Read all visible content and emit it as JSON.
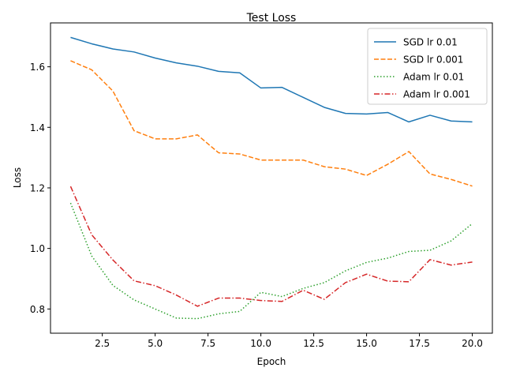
{
  "chart_data": {
    "type": "line",
    "title": "Test Loss",
    "xlabel": "Epoch",
    "ylabel": "Loss",
    "xlim": [
      0.05,
      20.95
    ],
    "ylim": [
      0.72,
      1.745
    ],
    "xticks": [
      2.5,
      5.0,
      7.5,
      10.0,
      12.5,
      15.0,
      17.5,
      20.0
    ],
    "xtick_labels": [
      "2.5",
      "5.0",
      "7.5",
      "10.0",
      "12.5",
      "15.0",
      "17.5",
      "20.0"
    ],
    "yticks": [
      0.8,
      1.0,
      1.2,
      1.4,
      1.6
    ],
    "ytick_labels": [
      "0.8",
      "1.0",
      "1.2",
      "1.4",
      "1.6"
    ],
    "grid": false,
    "legend_position": "top-right",
    "x": [
      1,
      2,
      3,
      4,
      5,
      6,
      7,
      8,
      9,
      10,
      11,
      12,
      13,
      14,
      15,
      16,
      17,
      18,
      19,
      20
    ],
    "series": [
      {
        "name": "SGD lr 0.01",
        "color": "#1f77b4",
        "dash": "solid",
        "values": [
          1.697,
          1.676,
          1.659,
          1.649,
          1.629,
          1.613,
          1.602,
          1.585,
          1.58,
          1.53,
          1.532,
          1.499,
          1.466,
          1.446,
          1.444,
          1.449,
          1.418,
          1.44,
          1.421,
          1.418
        ]
      },
      {
        "name": "SGD lr 0.001",
        "color": "#ff7f0e",
        "dash": "dashed",
        "values": [
          1.62,
          1.59,
          1.52,
          1.389,
          1.362,
          1.362,
          1.375,
          1.316,
          1.312,
          1.292,
          1.292,
          1.292,
          1.27,
          1.262,
          1.241,
          1.278,
          1.32,
          1.246,
          1.228,
          1.206
        ]
      },
      {
        "name": "Adam lr 0.01",
        "color": "#2ca02c",
        "dash": "dotted",
        "values": [
          1.15,
          0.975,
          0.878,
          0.83,
          0.8,
          0.77,
          0.768,
          0.784,
          0.792,
          0.855,
          0.841,
          0.868,
          0.887,
          0.926,
          0.954,
          0.968,
          0.99,
          0.994,
          1.025,
          1.082
        ]
      },
      {
        "name": "Adam lr 0.001",
        "color": "#d62728",
        "dash": "dashdot",
        "values": [
          1.205,
          1.045,
          0.962,
          0.893,
          0.877,
          0.846,
          0.809,
          0.836,
          0.836,
          0.828,
          0.825,
          0.862,
          0.832,
          0.887,
          0.915,
          0.892,
          0.89,
          0.963,
          0.945,
          0.955
        ]
      }
    ]
  }
}
